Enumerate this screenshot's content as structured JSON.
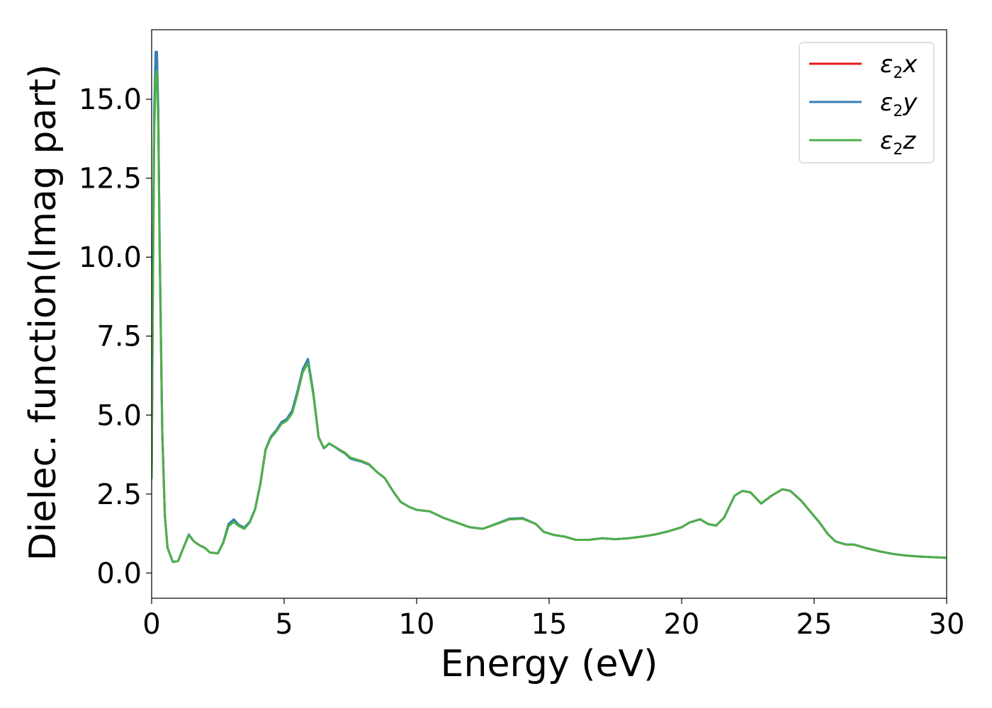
{
  "chart_data": {
    "type": "line",
    "title": "",
    "xlabel": "Energy (eV)",
    "ylabel": "Dielec. function(Imag part)",
    "xlim": [
      0,
      30
    ],
    "ylim": [
      -0.8,
      17.2
    ],
    "xticks": [
      0,
      5,
      10,
      15,
      20,
      25,
      30
    ],
    "xtick_labels": [
      "0",
      "5",
      "10",
      "15",
      "20",
      "25",
      "30"
    ],
    "yticks": [
      0.0,
      2.5,
      5.0,
      7.5,
      10.0,
      12.5,
      15.0
    ],
    "ytick_labels": [
      "0.0",
      "2.5",
      "5.0",
      "7.5",
      "10.0",
      "12.5",
      "15.0"
    ],
    "grid": false,
    "legend_position": "top-right",
    "x": [
      0.0,
      0.05,
      0.1,
      0.15,
      0.2,
      0.25,
      0.3,
      0.4,
      0.5,
      0.6,
      0.8,
      1.0,
      1.2,
      1.4,
      1.6,
      1.8,
      2.0,
      2.2,
      2.5,
      2.7,
      2.9,
      3.1,
      3.3,
      3.5,
      3.7,
      3.9,
      4.1,
      4.3,
      4.5,
      4.7,
      4.9,
      5.1,
      5.3,
      5.5,
      5.7,
      5.9,
      6.1,
      6.3,
      6.5,
      6.7,
      6.9,
      7.1,
      7.3,
      7.5,
      7.7,
      7.9,
      8.2,
      8.5,
      8.8,
      9.1,
      9.4,
      9.7,
      10.0,
      10.5,
      11.0,
      11.5,
      12.0,
      12.5,
      13.0,
      13.5,
      14.0,
      14.5,
      14.8,
      15.2,
      15.6,
      16.0,
      16.5,
      17.0,
      17.5,
      18.0,
      18.5,
      19.0,
      19.5,
      20.0,
      20.3,
      20.7,
      21.0,
      21.3,
      21.6,
      22.0,
      22.3,
      22.6,
      23.0,
      23.4,
      23.8,
      24.1,
      24.5,
      24.8,
      25.2,
      25.5,
      25.8,
      26.2,
      26.5,
      27.0,
      27.5,
      28.0,
      28.5,
      29.0,
      29.5,
      30.0
    ],
    "series": [
      {
        "name": "ε₂x",
        "label_base": "ε",
        "label_sub": "2",
        "label_tail": "x",
        "color": "#e41a1c",
        "values": [
          3.0,
          9.5,
          14.5,
          16.3,
          16.4,
          14.5,
          10.5,
          4.5,
          1.8,
          0.8,
          0.35,
          0.38,
          0.8,
          1.2,
          1.0,
          0.88,
          0.8,
          0.65,
          0.62,
          0.95,
          1.5,
          1.65,
          1.5,
          1.42,
          1.6,
          2.0,
          2.8,
          3.9,
          4.3,
          4.5,
          4.75,
          4.85,
          5.1,
          5.7,
          6.4,
          6.7,
          5.7,
          4.3,
          3.95,
          4.1,
          4.0,
          3.9,
          3.8,
          3.65,
          3.6,
          3.55,
          3.45,
          3.2,
          3.0,
          2.6,
          2.25,
          2.1,
          2.0,
          1.95,
          1.75,
          1.6,
          1.45,
          1.4,
          1.55,
          1.7,
          1.72,
          1.55,
          1.3,
          1.2,
          1.15,
          1.05,
          1.05,
          1.1,
          1.07,
          1.1,
          1.15,
          1.22,
          1.32,
          1.45,
          1.6,
          1.7,
          1.55,
          1.5,
          1.75,
          2.45,
          2.6,
          2.55,
          2.2,
          2.45,
          2.65,
          2.6,
          2.3,
          2.0,
          1.6,
          1.25,
          1.0,
          0.9,
          0.9,
          0.78,
          0.68,
          0.6,
          0.55,
          0.52,
          0.5,
          0.48
        ]
      },
      {
        "name": "ε₂y",
        "label_base": "ε",
        "label_sub": "2",
        "label_tail": "y",
        "color": "#377eb8",
        "values": [
          3.0,
          9.7,
          14.8,
          16.5,
          16.5,
          14.7,
          10.6,
          4.5,
          1.8,
          0.8,
          0.35,
          0.38,
          0.8,
          1.22,
          1.0,
          0.88,
          0.8,
          0.65,
          0.62,
          0.97,
          1.55,
          1.7,
          1.52,
          1.44,
          1.62,
          2.02,
          2.82,
          3.92,
          4.32,
          4.52,
          4.78,
          4.88,
          5.14,
          5.75,
          6.45,
          6.78,
          5.72,
          4.3,
          3.95,
          4.1,
          4.0,
          3.88,
          3.78,
          3.62,
          3.57,
          3.53,
          3.43,
          3.2,
          3.0,
          2.6,
          2.25,
          2.1,
          2.0,
          1.95,
          1.75,
          1.6,
          1.45,
          1.4,
          1.56,
          1.72,
          1.74,
          1.55,
          1.3,
          1.2,
          1.15,
          1.05,
          1.05,
          1.1,
          1.07,
          1.1,
          1.15,
          1.22,
          1.32,
          1.45,
          1.6,
          1.7,
          1.55,
          1.5,
          1.75,
          2.45,
          2.6,
          2.55,
          2.2,
          2.45,
          2.65,
          2.6,
          2.3,
          2.0,
          1.6,
          1.25,
          1.0,
          0.9,
          0.9,
          0.78,
          0.68,
          0.6,
          0.55,
          0.52,
          0.5,
          0.48
        ]
      },
      {
        "name": "ε₂z",
        "label_base": "ε",
        "label_sub": "2",
        "label_tail": "z",
        "color": "#4daf4a",
        "values": [
          3.0,
          9.2,
          14.0,
          15.7,
          15.9,
          14.2,
          10.3,
          4.4,
          1.8,
          0.8,
          0.35,
          0.38,
          0.8,
          1.2,
          1.0,
          0.88,
          0.8,
          0.65,
          0.62,
          0.95,
          1.48,
          1.62,
          1.48,
          1.4,
          1.6,
          2.0,
          2.8,
          3.9,
          4.28,
          4.48,
          4.72,
          4.82,
          5.05,
          5.65,
          6.35,
          6.65,
          5.65,
          4.3,
          3.95,
          4.1,
          4.0,
          3.9,
          3.8,
          3.65,
          3.6,
          3.55,
          3.45,
          3.2,
          3.0,
          2.6,
          2.25,
          2.1,
          2.0,
          1.95,
          1.75,
          1.6,
          1.45,
          1.4,
          1.55,
          1.7,
          1.72,
          1.55,
          1.3,
          1.2,
          1.15,
          1.05,
          1.05,
          1.1,
          1.07,
          1.1,
          1.15,
          1.22,
          1.32,
          1.45,
          1.6,
          1.7,
          1.55,
          1.5,
          1.75,
          2.45,
          2.6,
          2.55,
          2.2,
          2.45,
          2.65,
          2.6,
          2.3,
          2.0,
          1.6,
          1.25,
          1.0,
          0.9,
          0.9,
          0.78,
          0.68,
          0.6,
          0.55,
          0.52,
          0.5,
          0.48
        ]
      }
    ]
  }
}
